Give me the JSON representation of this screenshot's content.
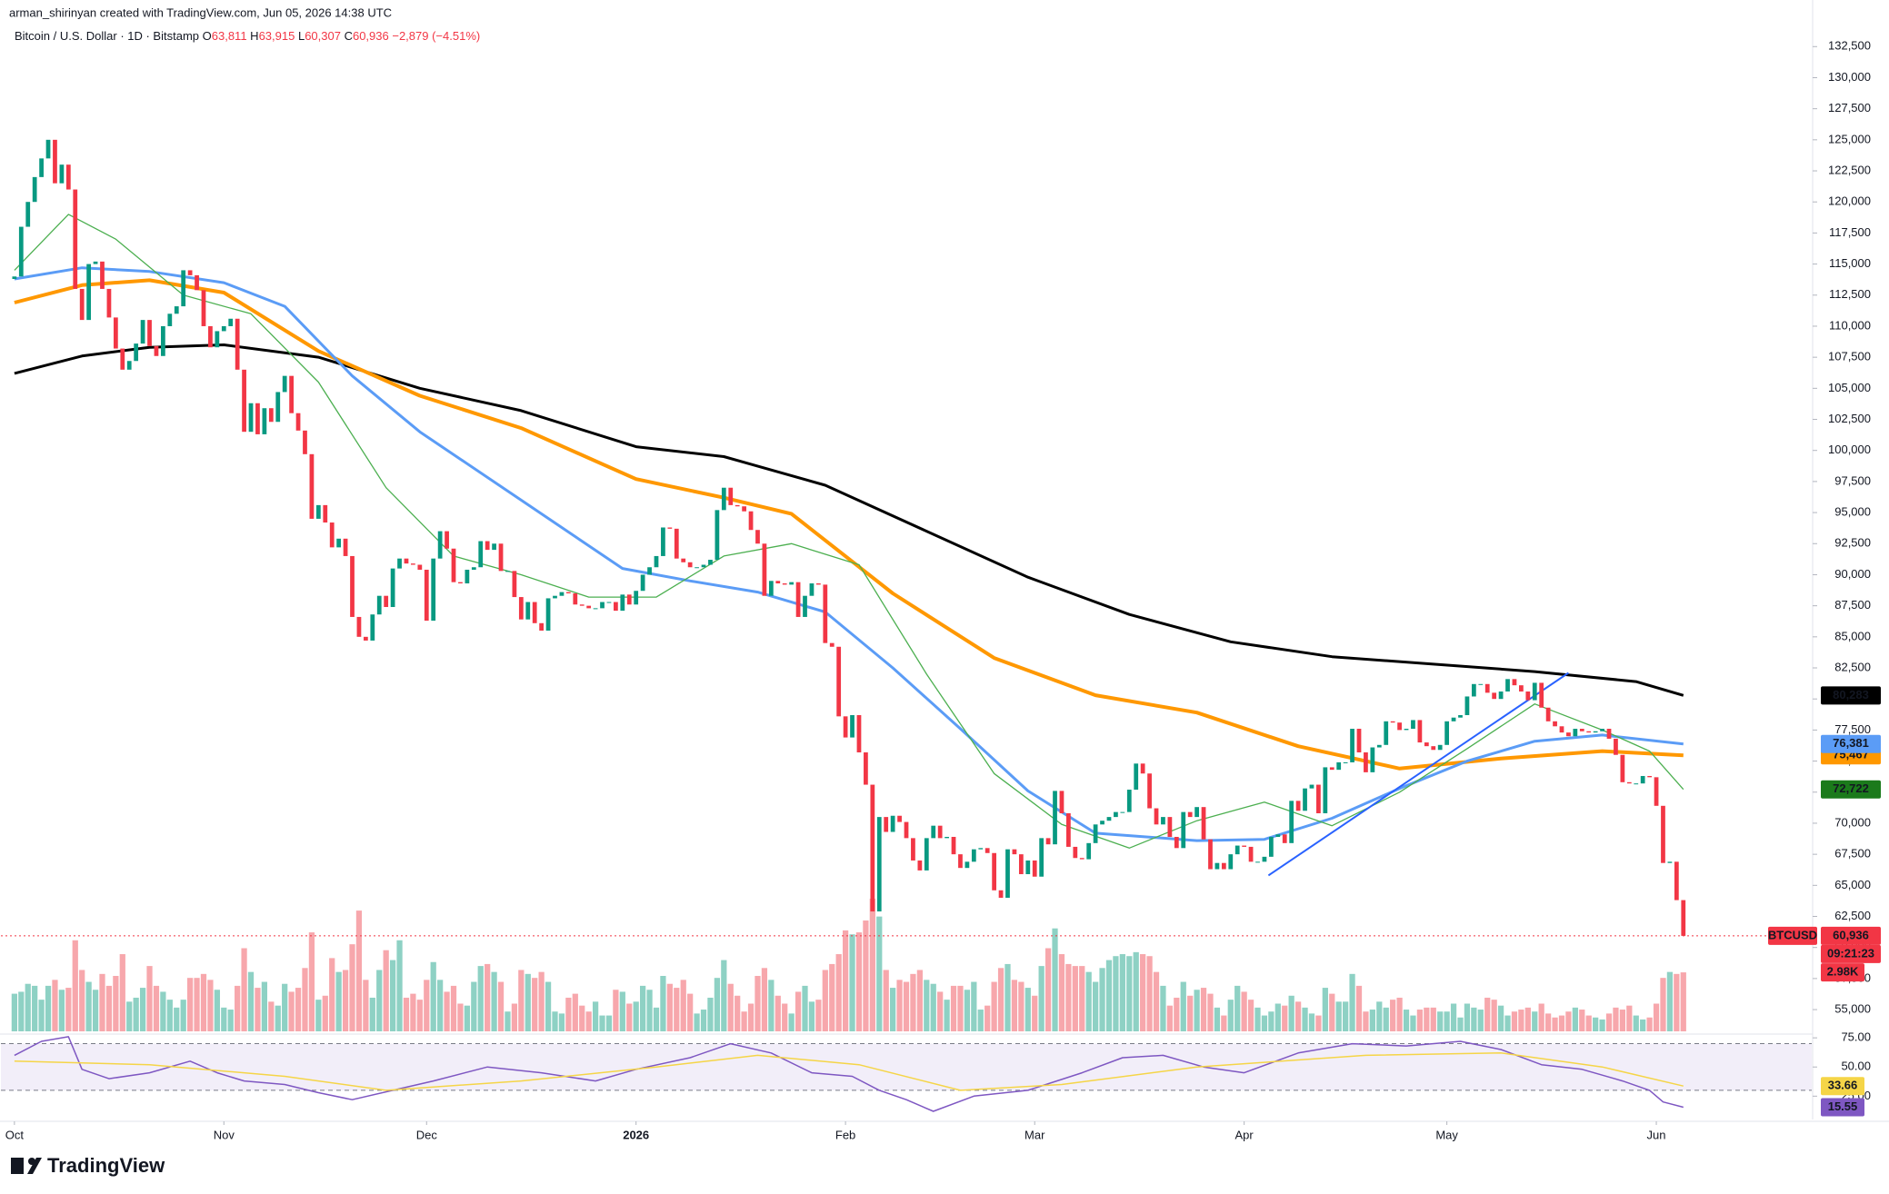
{
  "chart_data": {
    "type": "candlestick",
    "credit": "arman_shirinyan created with TradingView.com, Jun 05, 2026 14:38 UTC",
    "symbol": "Bitcoin / U.S. Dollar · 1D · Bitstamp",
    "ohlc": [
      {
        "label": "O",
        "value": "63,811"
      },
      {
        "label": "H",
        "value": "63,915"
      },
      {
        "label": "L",
        "value": "60,307"
      },
      {
        "label": "C",
        "value": "60,936"
      }
    ],
    "change": "−2,879 (−4.51%)",
    "up_color": "#089981",
    "down_color": "#f23645",
    "volume_up_color": "#8ed1c4",
    "volume_down_color": "#f7a7ac",
    "first_open": 113800,
    "close": [
      114000,
      118000,
      120000,
      122000,
      123500,
      125000,
      121500,
      123000,
      121000,
      113000,
      110500,
      115000,
      115200,
      113000,
      110700,
      108200,
      106500,
      107200,
      108600,
      110500,
      108400,
      107600,
      110000,
      111000,
      111600,
      114500,
      114100,
      112900,
      110000,
      108300,
      109600,
      110000,
      110600,
      106500,
      101500,
      103800,
      101300,
      103400,
      102300,
      104700,
      106000,
      103000,
      101600,
      99700,
      94500,
      95600,
      94200,
      92200,
      92900,
      91500,
      86600,
      85000,
      84700,
      86800,
      88300,
      87400,
      90500,
      91300,
      90900,
      90800,
      90400,
      86300,
      91300,
      93500,
      92100,
      89400,
      89300,
      90400,
      90600,
      92700,
      92000,
      92500,
      90300,
      90300,
      88200,
      86400,
      87800,
      86100,
      85500,
      88100,
      88300,
      88600,
      88500,
      87600,
      87500,
      87300,
      87300,
      87800,
      87800,
      87100,
      88400,
      87600,
      88700,
      90000,
      90600,
      91500,
      93800,
      93700,
      91300,
      91000,
      90600,
      90600,
      90800,
      91200,
      95200,
      97000,
      95600,
      95500,
      95100,
      93600,
      92500,
      88300,
      89500,
      89300,
      89200,
      89400,
      86600,
      88300,
      89300,
      89200,
      84500,
      84200,
      78600,
      76900,
      78700,
      75700,
      73100,
      62900,
      70500,
      69300,
      70600,
      70100,
      68800,
      67000,
      66200,
      68800,
      69800,
      68800,
      68900,
      67500,
      66400,
      66900,
      67900,
      68000,
      67600,
      64600,
      64000,
      67900,
      67500,
      65900,
      67000,
      65700,
      68800,
      68300,
      72600,
      70800,
      68100,
      67200,
      67100,
      68400,
      69900,
      70200,
      70500,
      70900,
      70900,
      72700,
      74800,
      74000,
      71200,
      69900,
      70500,
      68900,
      68000,
      70900,
      70500,
      71300,
      68700,
      66300,
      66800,
      66300,
      67500,
      68200,
      68100,
      66900,
      66900,
      67300,
      68900,
      69100,
      68400,
      71800,
      71000,
      72800,
      73100,
      70800,
      74500,
      74300,
      74900,
      74900,
      77600,
      75700,
      74100,
      76100,
      76300,
      78200,
      78100,
      77500,
      77600,
      78300,
      76500,
      76200,
      75900,
      76300,
      78200,
      78500,
      78700,
      80200,
      81200,
      81200,
      80500,
      80000,
      80600,
      81600,
      81100,
      80600,
      79900,
      81300,
      79300,
      78200,
      77800,
      77300,
      77000,
      77600,
      77400,
      77300,
      77400,
      77600,
      76800,
      75500,
      73300,
      73200,
      73200,
      73800,
      73700,
      71400,
      66800,
      66900,
      63811,
      60936
    ],
    "volume": [
      1.9,
      2.0,
      2.4,
      2.3,
      1.6,
      2.3,
      2.6,
      2.1,
      2.2,
      4.6,
      3.1,
      2.5,
      2.1,
      2.9,
      2.3,
      2.8,
      3.9,
      1.5,
      1.7,
      2.2,
      3.3,
      2.3,
      2.0,
      1.6,
      1.2,
      1.6,
      2.7,
      2.7,
      2.9,
      2.6,
      2.1,
      1.2,
      1.1,
      2.3,
      4.2,
      3.0,
      2.2,
      2.5,
      1.5,
      1.3,
      2.4,
      2.0,
      2.2,
      3.2,
      5.0,
      1.6,
      1.8,
      3.7,
      3.0,
      3.1,
      4.4,
      6.1,
      2.6,
      1.7,
      3.1,
      4.1,
      3.6,
      4.6,
      1.7,
      1.9,
      1.6,
      2.6,
      3.5,
      2.6,
      2.0,
      2.3,
      1.4,
      1.3,
      2.5,
      3.3,
      3.4,
      3.0,
      2.5,
      1.0,
      1.4,
      3.1,
      2.9,
      2.7,
      3.0,
      2.5,
      1.0,
      0.9,
      1.7,
      1.9,
      1.3,
      1.0,
      1.5,
      0.8,
      0.8,
      2.1,
      2.0,
      1.4,
      1.5,
      2.3,
      2.1,
      1.2,
      2.8,
      2.4,
      2.2,
      2.6,
      1.9,
      0.9,
      1.1,
      1.7,
      2.7,
      3.6,
      2.4,
      1.8,
      1.0,
      1.4,
      2.8,
      3.2,
      2.6,
      1.8,
      1.4,
      0.9,
      2.0,
      2.3,
      1.5,
      1.6,
      3.1,
      3.4,
      3.9,
      5.1,
      4.9,
      5.0,
      5.6,
      6.7,
      5.8,
      3.1,
      2.2,
      2.6,
      2.5,
      2.9,
      3.1,
      2.6,
      2.4,
      2.0,
      1.6,
      2.3,
      2.3,
      2.1,
      2.5,
      1.1,
      1.3,
      2.5,
      3.2,
      3.4,
      2.6,
      2.5,
      2.2,
      1.8,
      3.3,
      4.2,
      5.2,
      3.9,
      3.4,
      3.3,
      3.3,
      3.0,
      2.5,
      3.2,
      3.6,
      3.8,
      3.9,
      3.8,
      4.0,
      3.9,
      3.8,
      3.0,
      2.3,
      1.3,
      1.7,
      2.5,
      1.8,
      2.1,
      2.2,
      1.9,
      1.2,
      0.8,
      1.6,
      2.3,
      2.0,
      1.6,
      1.2,
      0.8,
      1.0,
      1.4,
      1.3,
      1.8,
      1.5,
      1.2,
      0.9,
      0.8,
      2.2,
      1.9,
      1.5,
      1.5,
      2.9,
      2.3,
      1.0,
      1.1,
      1.5,
      1.2,
      1.6,
      1.7,
      1.1,
      0.8,
      1.1,
      1.2,
      1.2,
      1.0,
      1.0,
      1.4,
      0.7,
      1.4,
      1.2,
      1.1,
      1.7,
      1.6,
      1.3,
      0.8,
      1.0,
      1.1,
      1.2,
      1.0,
      1.4,
      0.9,
      0.7,
      0.8,
      1.0,
      1.2,
      1.1,
      0.8,
      0.7,
      0.6,
      0.9,
      1.2,
      1.1,
      1.3,
      0.8,
      0.6,
      0.7,
      1.4,
      2.7,
      3.0,
      2.9,
      2.98
    ],
    "volume_ylim": [
      0,
      14
    ],
    "volume_label": "2.98K",
    "xlim": [
      -2,
      266
    ],
    "xticks": [
      {
        "value": 0,
        "label": "Oct"
      },
      {
        "value": 31,
        "label": "Nov"
      },
      {
        "value": 61,
        "label": "Dec"
      },
      {
        "value": 92,
        "label": "2026"
      },
      {
        "value": 123,
        "label": "Feb"
      },
      {
        "value": 151,
        "label": "Mar"
      },
      {
        "value": 182,
        "label": "Apr"
      },
      {
        "value": 212,
        "label": "May"
      },
      {
        "value": 243,
        "label": "Jun"
      }
    ],
    "ylim": [
      53250,
      136250
    ],
    "yticks": [
      {
        "value": 55000,
        "label": "55,000"
      },
      {
        "value": 57500,
        "label": "57,500"
      },
      {
        "value": 60000,
        "label": "60,000"
      },
      {
        "value": 62500,
        "label": "62,500"
      },
      {
        "value": 65000,
        "label": "65,000"
      },
      {
        "value": 67500,
        "label": "67,500"
      },
      {
        "value": 70000,
        "label": "70,000"
      },
      {
        "value": 72500,
        "label": "72,500"
      },
      {
        "value": 75000,
        "label": "75,000"
      },
      {
        "value": 77500,
        "label": "77,500"
      },
      {
        "value": 80000,
        "label": "80,000"
      },
      {
        "value": 82500,
        "label": "82,500"
      },
      {
        "value": 85000,
        "label": "85,000"
      },
      {
        "value": 87500,
        "label": "87,500"
      },
      {
        "value": 90000,
        "label": "90,000"
      },
      {
        "value": 92500,
        "label": "92,500"
      },
      {
        "value": 95000,
        "label": "95,000"
      },
      {
        "value": 97500,
        "label": "97,500"
      },
      {
        "value": 100000,
        "label": "100,000"
      },
      {
        "value": 102500,
        "label": "102,500"
      },
      {
        "value": 105000,
        "label": "105,000"
      },
      {
        "value": 107500,
        "label": "107,500"
      },
      {
        "value": 110000,
        "label": "110,000"
      },
      {
        "value": 112500,
        "label": "112,500"
      },
      {
        "value": 115000,
        "label": "115,000"
      },
      {
        "value": 117500,
        "label": "117,500"
      },
      {
        "value": 120000,
        "label": "120,000"
      },
      {
        "value": 122500,
        "label": "122,500"
      },
      {
        "value": 125000,
        "label": "125,000"
      },
      {
        "value": 127500,
        "label": "127,500"
      },
      {
        "value": 130000,
        "label": "130,000"
      },
      {
        "value": 132500,
        "label": "132,500"
      }
    ],
    "ma": [
      {
        "color": "#000000",
        "width": 3,
        "x": [
          0,
          10,
          20,
          31,
          45,
          60,
          75,
          92,
          105,
          120,
          135,
          150,
          165,
          180,
          195,
          210,
          225,
          240,
          247
        ],
        "values": [
          106200,
          107600,
          108300,
          108500,
          107500,
          105000,
          103200,
          100300,
          99500,
          97200,
          93500,
          89800,
          86800,
          84600,
          83400,
          82800,
          82200,
          81400,
          80283
        ],
        "last_label": "80,283"
      },
      {
        "color": "#ff9800",
        "width": 4,
        "x": [
          0,
          10,
          20,
          31,
          45,
          60,
          75,
          92,
          105,
          115,
          130,
          145,
          160,
          175,
          190,
          205,
          220,
          235,
          247
        ],
        "values": [
          111900,
          113300,
          113700,
          112700,
          108000,
          104400,
          101800,
          97700,
          96200,
          94900,
          88500,
          83300,
          80300,
          78900,
          76200,
          74400,
          75200,
          75800,
          75467
        ],
        "last_label": "75,467"
      },
      {
        "color": "#5b9cf6",
        "width": 3,
        "x": [
          0,
          10,
          20,
          31,
          40,
          50,
          60,
          75,
          90,
          100,
          110,
          120,
          130,
          140,
          150,
          160,
          175,
          185,
          195,
          205,
          215,
          225,
          235,
          247
        ],
        "values": [
          113800,
          114700,
          114400,
          113500,
          111600,
          106000,
          101500,
          96000,
          90500,
          89500,
          88600,
          87000,
          82500,
          77600,
          72600,
          69200,
          68600,
          68700,
          70400,
          72800,
          75000,
          76600,
          77100,
          76381
        ],
        "last_label": "76,381"
      },
      {
        "color": "#4caf50",
        "width": 1.3,
        "x": [
          0,
          8,
          15,
          25,
          35,
          45,
          55,
          65,
          75,
          85,
          95,
          105,
          115,
          125,
          135,
          145,
          155,
          165,
          175,
          185,
          195,
          205,
          215,
          225,
          235,
          242,
          247
        ],
        "values": [
          114500,
          119000,
          117000,
          112500,
          111000,
          105500,
          97000,
          91500,
          90000,
          88200,
          88200,
          91500,
          92500,
          90800,
          82000,
          74000,
          69900,
          68000,
          70200,
          71700,
          69800,
          72500,
          76000,
          79600,
          77500,
          75800,
          72722
        ],
        "last_label": "72,722",
        "label_color": "#1b7a1b"
      }
    ],
    "trendline": {
      "color": "#2962ff",
      "x": [
        185.6,
        230
      ],
      "values": [
        65800,
        82100
      ]
    },
    "last_price": {
      "name": "BTCUSD",
      "value": 60936,
      "label": "60,936",
      "countdown": "09:21:23"
    },
    "rsi": {
      "ylim": [
        5,
        79
      ],
      "yticks": [
        {
          "value": 75,
          "label": "75.00"
        },
        {
          "value": 50,
          "label": "50.00"
        },
        {
          "value": 25,
          "label": "25.00"
        }
      ],
      "band": [
        30,
        70
      ],
      "series": [
        {
          "color": "#7e57c2",
          "x": [
            0,
            4,
            8,
            10,
            14,
            20,
            26,
            30,
            34,
            40,
            45,
            50,
            56,
            62,
            70,
            78,
            86,
            92,
            100,
            106,
            112,
            118,
            124,
            128,
            132,
            136,
            142,
            150,
            158,
            164,
            170,
            176,
            182,
            190,
            198,
            206,
            214,
            220,
            226,
            232,
            238,
            242,
            244,
            247
          ],
          "values": [
            60,
            72,
            76,
            48,
            40,
            45,
            55,
            45,
            38,
            35,
            28,
            22,
            30,
            38,
            50,
            45,
            38,
            48,
            58,
            70,
            62,
            45,
            42,
            30,
            22,
            12,
            25,
            30,
            45,
            58,
            60,
            50,
            45,
            62,
            70,
            68,
            72,
            65,
            52,
            48,
            38,
            30,
            20,
            15.55
          ],
          "last_label": "15.55",
          "label_color": "#7e57c2"
        },
        {
          "color": "#f5d547",
          "x": [
            0,
            20,
            40,
            55,
            75,
            95,
            110,
            125,
            140,
            155,
            175,
            200,
            220,
            235,
            247
          ],
          "values": [
            55,
            52,
            42,
            30,
            38,
            50,
            60,
            52,
            30,
            35,
            50,
            60,
            62,
            50,
            33.66
          ],
          "last_label": "33.66",
          "label_color": "#f5d547"
        }
      ]
    },
    "brand": "TradingView"
  }
}
